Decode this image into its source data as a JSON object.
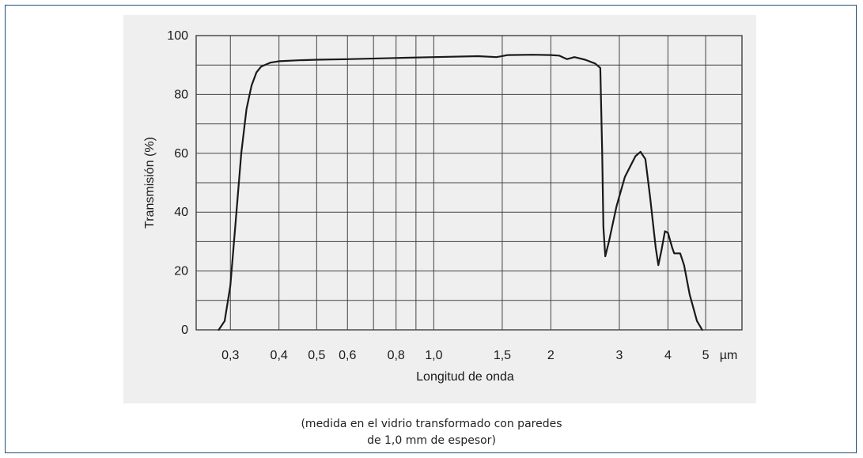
{
  "caption": {
    "line1": "(medida en el vidrio transformado con paredes",
    "line2": "de 1,0 mm de espesor)"
  },
  "chart_data": {
    "type": "line",
    "title": "",
    "xlabel": "Longitud de onda",
    "ylabel": "Transmisión (%)",
    "x_unit_label": "µm",
    "x_scale": "log",
    "xlim": [
      0.245,
      6.2
    ],
    "ylim": [
      0,
      100
    ],
    "y_ticks": [
      0,
      20,
      40,
      60,
      80,
      100
    ],
    "y_tick_labels": [
      "0",
      "20",
      "40",
      "60",
      "80",
      "100"
    ],
    "x_ticks": [
      0.3,
      0.4,
      0.5,
      0.6,
      0.8,
      1.0,
      1.5,
      2,
      3,
      4,
      5
    ],
    "x_tick_labels": [
      "0,3",
      "0,4",
      "0,5",
      "0,6",
      "0,8",
      "1,0",
      "1,5",
      "2",
      "3",
      "4",
      "5"
    ],
    "x_grid": [
      0.3,
      0.4,
      0.5,
      0.6,
      0.7,
      0.8,
      0.9,
      1.0,
      1.5,
      2,
      3,
      4,
      5
    ],
    "grid": true,
    "line_color": "#1a1a1a",
    "series": [
      {
        "values": [
          [
            0.28,
            0
          ],
          [
            0.29,
            3
          ],
          [
            0.3,
            15
          ],
          [
            0.31,
            38
          ],
          [
            0.32,
            60
          ],
          [
            0.33,
            75
          ],
          [
            0.34,
            83
          ],
          [
            0.35,
            87.5
          ],
          [
            0.36,
            89.5
          ],
          [
            0.38,
            90.8
          ],
          [
            0.4,
            91.3
          ],
          [
            0.45,
            91.6
          ],
          [
            0.5,
            91.8
          ],
          [
            0.6,
            92.0
          ],
          [
            0.8,
            92.4
          ],
          [
            1.0,
            92.7
          ],
          [
            1.3,
            93.0
          ],
          [
            1.45,
            92.7
          ],
          [
            1.55,
            93.4
          ],
          [
            1.8,
            93.5
          ],
          [
            2.0,
            93.4
          ],
          [
            2.1,
            93.2
          ],
          [
            2.2,
            92.0
          ],
          [
            2.3,
            92.7
          ],
          [
            2.45,
            91.8
          ],
          [
            2.6,
            90.5
          ],
          [
            2.68,
            89.0
          ],
          [
            2.71,
            60
          ],
          [
            2.73,
            35
          ],
          [
            2.76,
            25
          ],
          [
            2.82,
            30
          ],
          [
            2.95,
            42
          ],
          [
            3.1,
            52
          ],
          [
            3.3,
            59
          ],
          [
            3.4,
            60.5
          ],
          [
            3.5,
            58
          ],
          [
            3.6,
            45
          ],
          [
            3.72,
            28
          ],
          [
            3.78,
            22
          ],
          [
            3.85,
            27
          ],
          [
            3.93,
            33.5
          ],
          [
            4.0,
            33
          ],
          [
            4.1,
            28
          ],
          [
            4.15,
            26
          ],
          [
            4.3,
            26
          ],
          [
            4.4,
            22
          ],
          [
            4.55,
            12
          ],
          [
            4.75,
            3
          ],
          [
            4.9,
            0
          ]
        ]
      }
    ]
  }
}
